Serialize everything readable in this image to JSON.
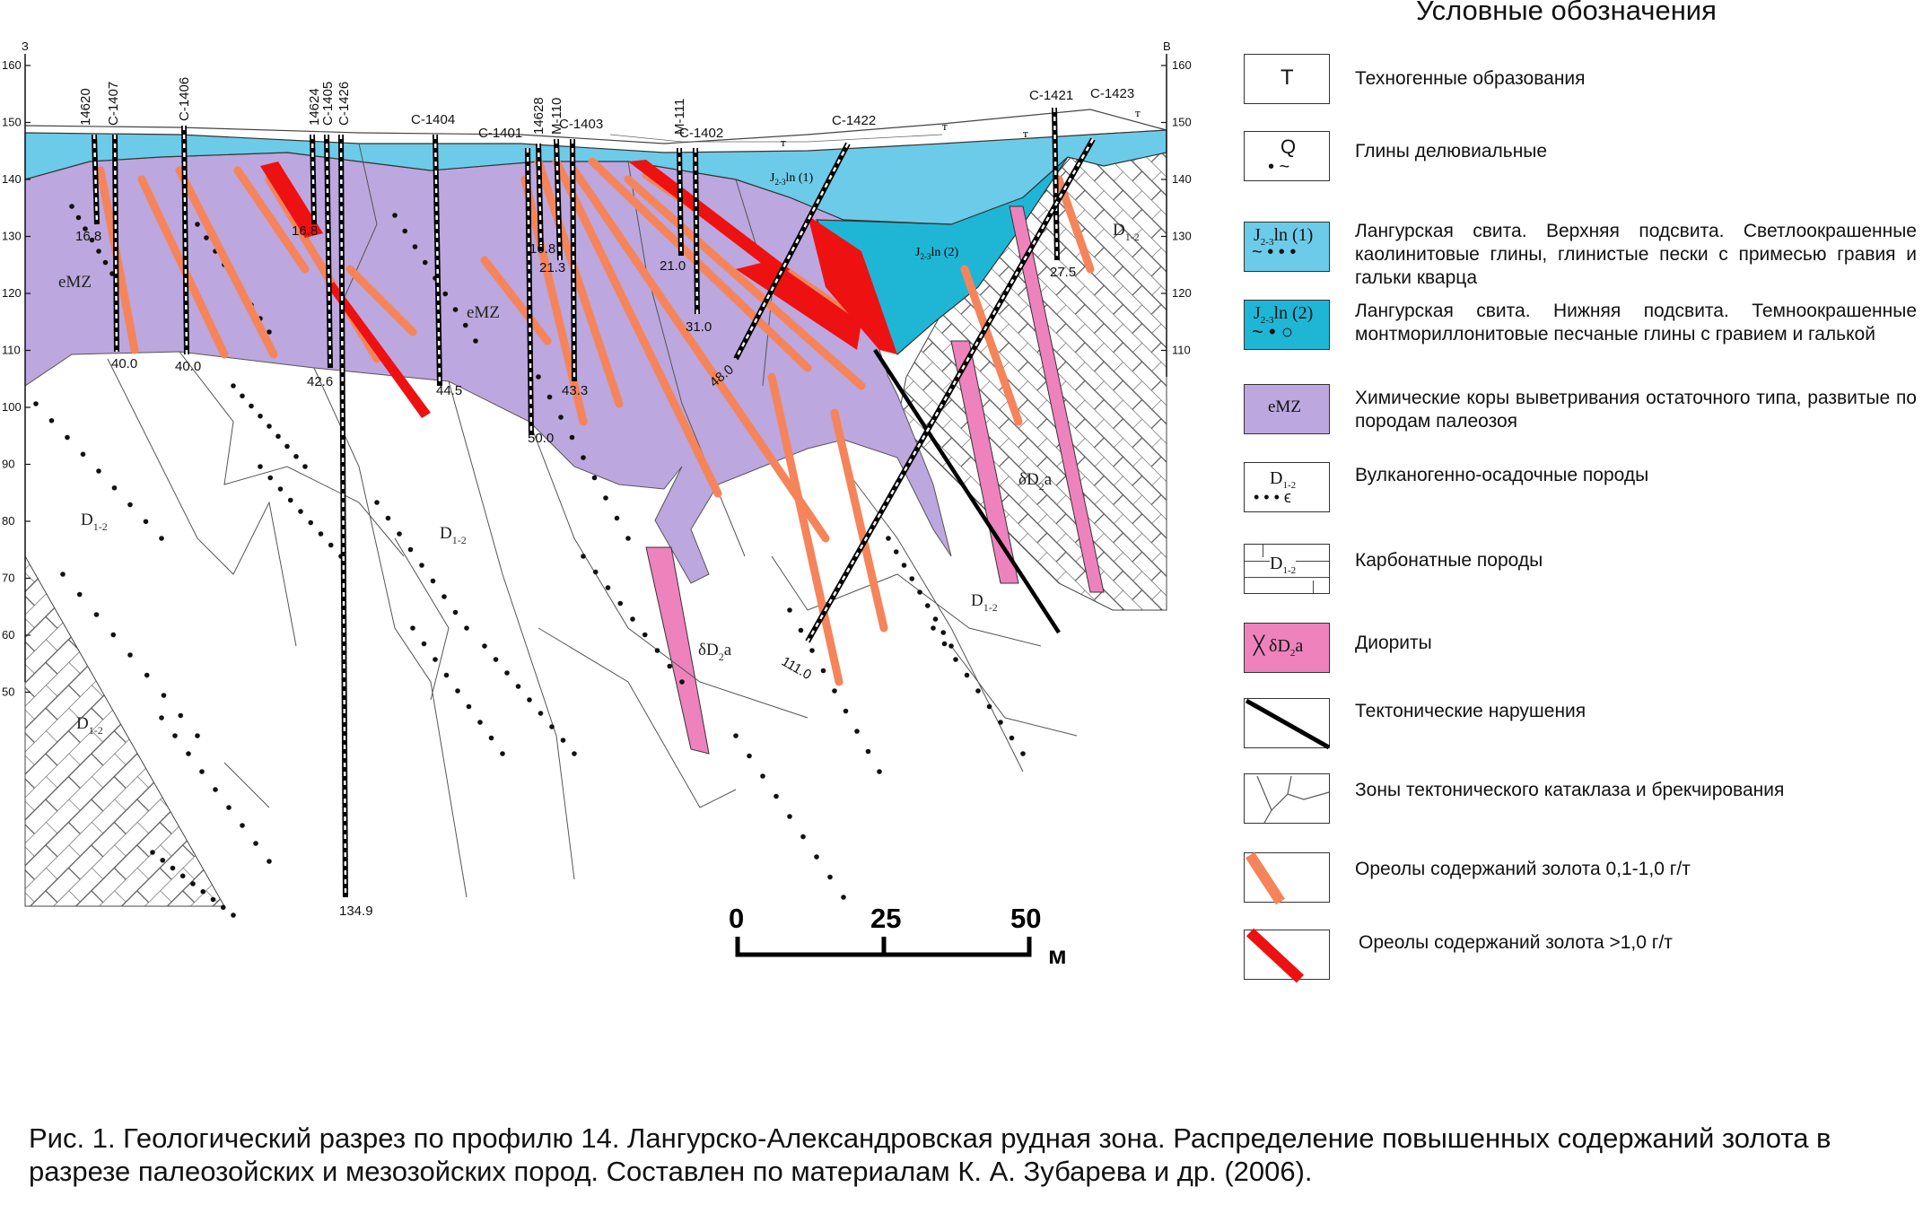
{
  "section": {
    "west_label": "З",
    "east_label": "В",
    "left_axis_ticks": [
      "160",
      "150",
      "140",
      "130",
      "120",
      "110",
      "100",
      "90",
      "80",
      "70",
      "60",
      "50"
    ],
    "right_axis_ticks": [
      "160",
      "150",
      "140",
      "130",
      "120",
      "110"
    ],
    "holes": [
      {
        "name": "14620",
        "depth": "16.8"
      },
      {
        "name": "C-1407",
        "depth": "40.0"
      },
      {
        "name": "C-1406",
        "depth": "40.0"
      },
      {
        "name": "14624",
        "depth": "16.8"
      },
      {
        "name": "C-1405",
        "depth": "42.6"
      },
      {
        "name": "C-1426",
        "depth": "134.9"
      },
      {
        "name": "C-1404",
        "depth": "44.5"
      },
      {
        "name": "C-1401",
        "depth": "50.0"
      },
      {
        "name": "14628",
        "depth": "16.8"
      },
      {
        "name": "M-110",
        "depth": "21.3"
      },
      {
        "name": "C-1403",
        "depth": "43.3"
      },
      {
        "name": "M-111",
        "depth": "21.0"
      },
      {
        "name": "C-1402",
        "depth": "31.0"
      },
      {
        "name": "C-1422",
        "depth": "48.0"
      },
      {
        "name": "C-1421",
        "depth": "27.5"
      },
      {
        "name": "C-1423",
        "depth": "111.0"
      }
    ],
    "units": {
      "emz": "eMZ",
      "d12": "D",
      "d12_sub": "1-2",
      "diorite": "δD",
      "diorite_sub": "2",
      "diorite_suffix": "a",
      "j_upper": "J",
      "j_upper_sub": "2-3",
      "j_upper_suffix": "ln (1)",
      "j_lower": "J",
      "j_lower_sub": "2-3",
      "j_lower_suffix": "ln (2)",
      "techno": "т"
    }
  },
  "scale": {
    "labels": [
      "0",
      "25",
      "50"
    ],
    "unit": "м"
  },
  "legend": {
    "title": "Условные обозначения",
    "items": [
      {
        "symbol": "Т",
        "text": "Техногенные образования"
      },
      {
        "symbol": "Q",
        "text": "Глины делювиальные"
      },
      {
        "symbol": "J",
        "symbol_sub": "2-3",
        "symbol_suffix": "ln (1)",
        "text": "Лангурская свита. Верхняя подсвита. Светлоокрашенные каолинитовые глины, глинистые пески с примесью гравия и гальки кварца"
      },
      {
        "symbol": "J",
        "symbol_sub": "2-3",
        "symbol_suffix": "ln (2)",
        "text": "Лангурская свита. Нижняя подсвита. Темноокрашенные монтмориллонитовые песчаные глины с гравием и галькой"
      },
      {
        "symbol": "eMZ",
        "text": "Химические коры выветривания остаточного типа, развитые по породам палеозоя"
      },
      {
        "symbol": "D",
        "symbol_sub": "1-2",
        "text": "Вулканогенно-осадочные породы"
      },
      {
        "symbol": "D",
        "symbol_sub": "1-2",
        "text": "Карбонатные породы"
      },
      {
        "symbol": "δD",
        "symbol_sub": "2",
        "symbol_suffix": "a",
        "text": "Диориты"
      },
      {
        "text": "Тектонические нарушения"
      },
      {
        "text": "Зоны тектонического катаклаза и брекчирования"
      },
      {
        "text": "Ореолы содержаний золота 0,1-1,0 г/т"
      },
      {
        "text": "Ореолы содержаний золота >1,0 г/т"
      }
    ]
  },
  "caption": "Рис. 1. Геологический разрез по профилю 14. Лангурско-Александровская рудная зона. Распределение повышенных содержаний золота в разрезе палеозойских и мезозойских пород. Составлен по материалам К. А. Зубарева и др. (2006).",
  "colors": {
    "upper_jln": "#6ccbe8",
    "lower_jln": "#1fb6d6",
    "emz": "#bca7de",
    "diorite": "#ee82bd",
    "gold_low": "#f5845b",
    "gold_high": "#ee1111"
  }
}
